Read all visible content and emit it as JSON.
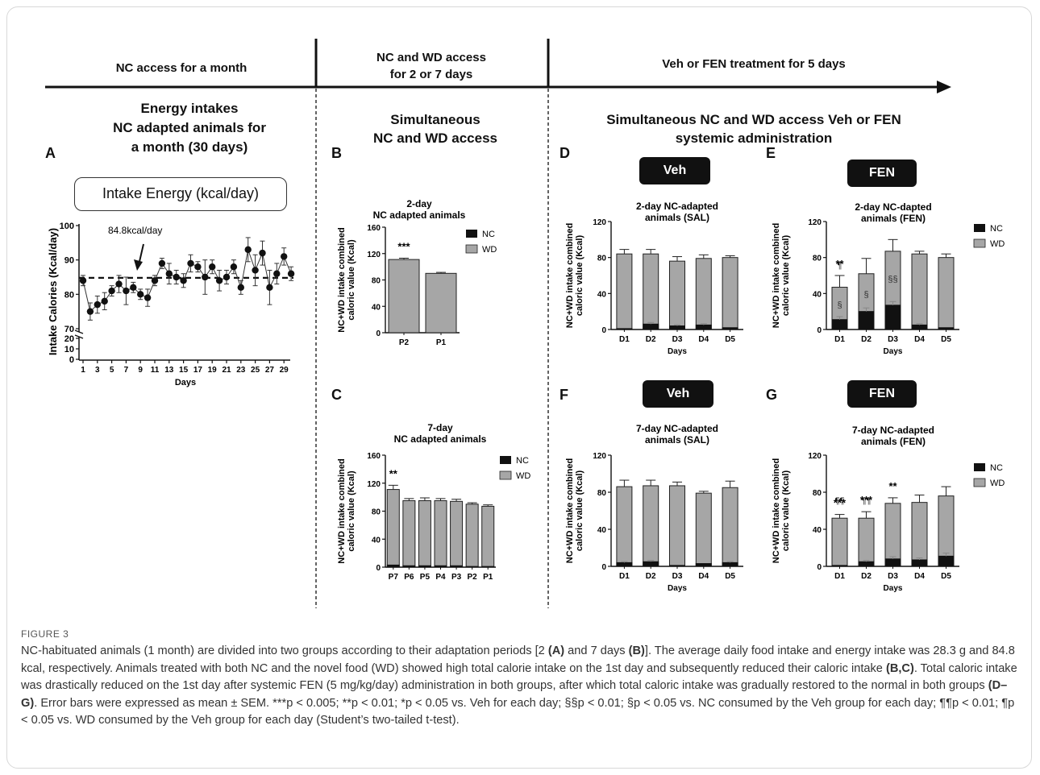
{
  "headers": {
    "h1": "NC access for a month",
    "h2_line1": "NC and WD access",
    "h2_line2": "for 2 or 7 days",
    "h3": "Veh or FEN treatment for 5 days"
  },
  "sections": {
    "a_title1": "Energy intakes",
    "a_title2": "NC adapted animals for",
    "a_title3": "a month (30 days)",
    "b_title1": "Simultaneous",
    "b_title2": "NC and WD access",
    "d_title1": "Simultaneous NC and WD access Veh or FEN",
    "d_title2": "systemic administration"
  },
  "labels": {
    "A": "A",
    "B": "B",
    "C": "C",
    "D": "D",
    "E": "E",
    "F": "F",
    "G": "G",
    "intake_box": "Intake Energy (kcal/day)",
    "veh": "Veh",
    "fen": "FEN"
  },
  "panelA": {
    "ylabel": "Intake Calories (Kcal/day)",
    "xlabel": "Days",
    "annotation": "84.8kcal/day",
    "ref": 84.8,
    "yticks_top": [
      "100",
      "90",
      "80",
      "70"
    ],
    "yticks_bottom": [
      "20",
      "10",
      "0"
    ],
    "xticks": [
      "1",
      "3",
      "5",
      "7",
      "9",
      "11",
      "13",
      "15",
      "17",
      "19",
      "21",
      "23",
      "25",
      "27",
      "29"
    ],
    "days": [
      1,
      2,
      3,
      4,
      5,
      6,
      7,
      8,
      9,
      10,
      11,
      12,
      13,
      14,
      15,
      16,
      17,
      18,
      19,
      20,
      21,
      22,
      23,
      24,
      25,
      26,
      27,
      28,
      29,
      30
    ],
    "values": [
      84,
      75,
      77,
      78,
      81,
      83,
      81,
      82,
      80,
      79,
      84,
      89,
      86,
      85,
      84,
      89,
      88,
      85,
      88,
      84,
      85,
      88,
      82,
      93,
      87,
      92,
      82,
      86,
      91,
      86
    ],
    "errors": [
      1.5,
      2.5,
      2.5,
      2.5,
      1.5,
      2.5,
      4,
      1.5,
      1.5,
      2.5,
      1.5,
      1.5,
      3,
      2,
      2,
      2.5,
      1.5,
      5,
      2,
      3,
      2,
      2,
      2,
      3.5,
      4.5,
      3.5,
      5,
      3,
      2.5,
      2
    ]
  },
  "chart_data": [
    {
      "panel": "B",
      "type": "bar",
      "title1": "2-day",
      "title2": "NC adapted animals",
      "ylabel1": "NC+WD intake combined",
      "ylabel2": "caloric value (Kcal)",
      "xlabel": "",
      "ylim": [
        0,
        160
      ],
      "yticks": [
        "0",
        "40",
        "80",
        "120",
        "160"
      ],
      "categories": [
        "P2",
        "P1"
      ],
      "series": [
        {
          "name": "NC",
          "values": [
            0,
            0
          ]
        },
        {
          "name": "WD",
          "values": [
            111,
            90
          ]
        }
      ],
      "errors": [
        2,
        1.5
      ],
      "stars": [
        "***",
        ""
      ],
      "legend": [
        "NC",
        "WD"
      ]
    },
    {
      "panel": "C",
      "type": "bar",
      "title1": "7-day",
      "title2": "NC adapted animals",
      "ylabel1": "NC+WD intake combined",
      "ylabel2": "caloric value (Kcal)",
      "xlabel": "",
      "ylim": [
        0,
        160
      ],
      "yticks": [
        "0",
        "40",
        "80",
        "120",
        "160"
      ],
      "categories": [
        "P7",
        "P6",
        "P5",
        "P4",
        "P3",
        "P2",
        "P1"
      ],
      "series": [
        {
          "name": "NC",
          "values": [
            3,
            2,
            2,
            2,
            2,
            1,
            1
          ]
        },
        {
          "name": "WD",
          "values": [
            108,
            93,
            93,
            93,
            92,
            89,
            86
          ]
        }
      ],
      "errors": [
        6,
        3,
        4,
        3,
        3,
        2,
        2
      ],
      "stars": [
        "**",
        "",
        "",
        "",
        "",
        "",
        ""
      ],
      "legend": [
        "NC",
        "WD"
      ]
    },
    {
      "panel": "D",
      "type": "bar",
      "title1": "2-day NC-adapted",
      "title2": "animals (SAL)",
      "ylabel1": "NC+WD intake combined",
      "ylabel2": "caloric value (Kcal)",
      "xlabel": "Days",
      "ylim": [
        0,
        120
      ],
      "yticks": [
        "0",
        "40",
        "80",
        "120"
      ],
      "categories": [
        "D1",
        "D2",
        "D3",
        "D4",
        "D5"
      ],
      "series": [
        {
          "name": "NC",
          "values": [
            1,
            6,
            4,
            5,
            2
          ]
        },
        {
          "name": "WD",
          "values": [
            83,
            78,
            72,
            74,
            78
          ]
        }
      ],
      "errors": [
        5,
        5,
        5,
        4,
        2
      ],
      "stars": [
        "",
        "",
        "",
        "",
        ""
      ],
      "legend": []
    },
    {
      "panel": "E",
      "type": "bar",
      "title1": "2-day NC-dapted",
      "title2": "animals (FEN)",
      "ylabel1": "NC+WD intake combined",
      "ylabel2": "caloric value (Kcal)",
      "xlabel": "Days",
      "ylim": [
        0,
        120
      ],
      "yticks": [
        "0",
        "40",
        "80",
        "120"
      ],
      "categories": [
        "D1",
        "D2",
        "D3",
        "D4",
        "D5"
      ],
      "series": [
        {
          "name": "NC",
          "values": [
            11,
            20,
            27,
            5,
            2
          ]
        },
        {
          "name": "WD",
          "values": [
            36,
            42,
            60,
            79,
            78
          ]
        }
      ],
      "errors": [
        13,
        17,
        13,
        3,
        4
      ],
      "stars": [
        "**",
        "",
        "",
        "",
        ""
      ],
      "marks": [
        {
          "i": 0,
          "sym": "¶",
          "v": 68
        },
        {
          "i": 0,
          "sym": "§",
          "v": 24
        },
        {
          "i": 1,
          "sym": "§",
          "v": 36
        },
        {
          "i": 2,
          "sym": "§§",
          "v": 53
        }
      ],
      "legend": [
        "NC",
        "WD"
      ]
    },
    {
      "panel": "F",
      "type": "bar",
      "title1": "7-day NC-adapted",
      "title2": "animals (SAL)",
      "ylabel1": "NC+WD intake combined",
      "ylabel2": "caloric value (Kcal)",
      "xlabel": "Days",
      "ylim": [
        0,
        120
      ],
      "yticks": [
        "0",
        "40",
        "80",
        "120"
      ],
      "categories": [
        "D1",
        "D2",
        "D3",
        "D4",
        "D5"
      ],
      "series": [
        {
          "name": "NC",
          "values": [
            4,
            5,
            1,
            3,
            4
          ]
        },
        {
          "name": "WD",
          "values": [
            82,
            82,
            86,
            76,
            81
          ]
        }
      ],
      "errors": [
        7,
        6,
        4,
        2,
        7
      ],
      "stars": [
        "",
        "",
        "",
        "",
        ""
      ],
      "legend": []
    },
    {
      "panel": "G",
      "type": "bar",
      "title1": "7-day NC-adapted",
      "title2": "animals (FEN)",
      "ylabel1": "NC+WD intake combined",
      "ylabel2": "caloric value (Kcal)",
      "xlabel": "Days",
      "ylim": [
        0,
        120
      ],
      "yticks": [
        "0",
        "40",
        "80",
        "120"
      ],
      "categories": [
        "D1",
        "D2",
        "D3",
        "D4",
        "D5"
      ],
      "series": [
        {
          "name": "NC",
          "values": [
            1,
            5,
            8,
            7,
            11
          ]
        },
        {
          "name": "WD",
          "values": [
            51,
            47,
            60,
            62,
            65
          ]
        }
      ],
      "errors": [
        4,
        7,
        6,
        8,
        10
      ],
      "stars": [
        "***",
        "***",
        "**",
        "",
        ""
      ],
      "marks": [
        {
          "i": 0,
          "sym": "¶¶",
          "v": 68
        },
        {
          "i": 1,
          "sym": "¶¶",
          "v": 68
        }
      ],
      "legend": [
        "NC",
        "WD"
      ]
    }
  ],
  "figure_label": "FIGURE 3",
  "caption": {
    "p1": "NC-habituated animals (1 month) are divided into two groups according to their adaptation periods [2 ",
    "p1b": "(A)",
    "p1c": " and 7 days ",
    "p1d": "(B)",
    "p1e": "]. The average daily food intake and energy intake was 28.3 g and 84.8 kcal, respectively. Animals treated with both NC and the novel food (WD) showed high total calorie intake on the 1st day and subsequently reduced their caloric intake ",
    "p1f": "(B,C)",
    "p1g": ". Total caloric intake was drastically reduced on the 1st day after systemic FEN (5 mg/kg/day) administration in both groups, after which total caloric intake was gradually restored to the normal in both groups ",
    "p1h": "(D–G)",
    "p1i": ". Error bars were expressed as mean ± SEM. ***p < 0.005; **p < 0.01; *p < 0.05 vs. Veh for each day; §§p < 0.01; §p < 0.05 vs. NC consumed by the Veh group for each day; ¶¶p < 0.01; ¶p < 0.05 vs. WD consumed by the Veh group for each day (Student’s two-tailed t-test)."
  }
}
